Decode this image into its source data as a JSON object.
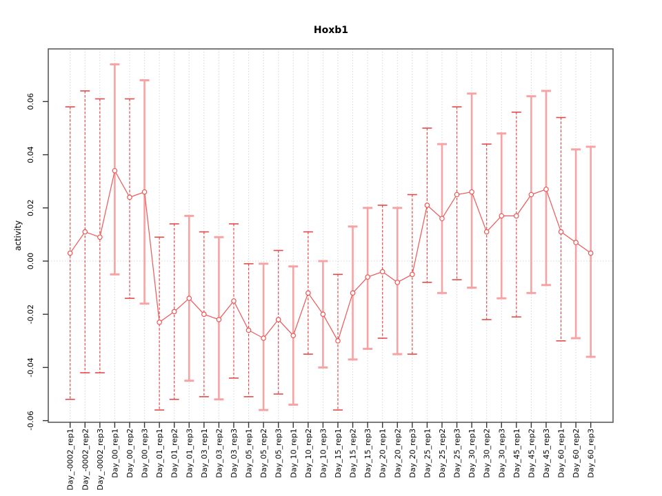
{
  "chart_data": {
    "type": "line",
    "title": "Hoxb1",
    "ylabel": "activity",
    "xlabel": "",
    "grid": "vertical dotted gridline per category plus dotted zero line",
    "legend": "none",
    "ylim": [
      -0.061,
      0.0795
    ],
    "yticks": [
      0.06,
      0.04,
      0.02,
      0.0,
      -0.02,
      -0.04,
      -0.06
    ],
    "ytick_labels": [
      "0.06",
      "0.04",
      "0.02",
      "0.00",
      "-0.02",
      "-0.04",
      "-0.06"
    ],
    "xtick_rotation": 90,
    "categories": [
      "Day_-0002_rep1",
      "Day_-0002_rep2",
      "Day_-0002_rep3",
      "Day_00_rep1",
      "Day_00_rep2",
      "Day_00_rep3",
      "Day_01_rep1",
      "Day_01_rep2",
      "Day_01_rep3",
      "Day_03_rep1",
      "Day_03_rep2",
      "Day_03_rep3",
      "Day_05_rep1",
      "Day_05_rep2",
      "Day_05_rep3",
      "Day_10_rep1",
      "Day_10_rep2",
      "Day_10_rep3",
      "Day_15_rep1",
      "Day_15_rep2",
      "Day_15_rep3",
      "Day_20_rep1",
      "Day_20_rep2",
      "Day_20_rep3",
      "Day_25_rep1",
      "Day_25_rep2",
      "Day_25_rep3",
      "Day_30_rep1",
      "Day_30_rep2",
      "Day_30_rep3",
      "Day_45_rep1",
      "Day_45_rep2",
      "Day_45_rep3",
      "Day_60_rep1",
      "Day_60_rep2",
      "Day_60_rep3"
    ],
    "series": [
      {
        "name": "activity",
        "means": [
          0.003,
          0.011,
          0.009,
          0.034,
          0.024,
          0.026,
          -0.023,
          -0.019,
          -0.014,
          -0.02,
          -0.022,
          -0.015,
          -0.026,
          -0.029,
          -0.022,
          -0.028,
          -0.012,
          -0.02,
          -0.03,
          -0.012,
          -0.006,
          -0.004,
          -0.008,
          -0.005,
          0.021,
          0.016,
          0.025,
          0.026,
          0.011,
          0.017,
          0.017,
          0.025,
          0.027,
          0.011,
          0.007,
          0.003
        ],
        "lower": [
          -0.052,
          -0.042,
          -0.042,
          -0.005,
          -0.014,
          -0.016,
          -0.056,
          -0.052,
          -0.045,
          -0.051,
          -0.052,
          -0.044,
          -0.051,
          -0.056,
          -0.05,
          -0.054,
          -0.035,
          -0.04,
          -0.056,
          -0.037,
          -0.033,
          -0.029,
          -0.035,
          -0.035,
          -0.008,
          -0.012,
          -0.007,
          -0.01,
          -0.022,
          -0.014,
          -0.021,
          -0.012,
          -0.009,
          -0.03,
          -0.029,
          -0.036
        ],
        "upper": [
          0.058,
          0.064,
          0.061,
          0.074,
          0.061,
          0.068,
          0.009,
          0.014,
          0.017,
          0.011,
          0.009,
          0.014,
          -0.001,
          -0.001,
          0.004,
          -0.002,
          0.011,
          0.0,
          -0.005,
          0.013,
          0.02,
          0.021,
          0.02,
          0.025,
          0.05,
          0.044,
          0.058,
          0.063,
          0.044,
          0.048,
          0.056,
          0.062,
          0.064,
          0.054,
          0.042,
          0.043
        ],
        "bar_styles": [
          "dashed",
          "dashed",
          "dashed",
          "solid",
          "dashed",
          "solid",
          "dashed",
          "dashed",
          "solid",
          "dashed",
          "solid",
          "dashed",
          "dashed",
          "solid",
          "dashed",
          "solid",
          "dashed",
          "solid",
          "dashed",
          "solid",
          "solid",
          "dashed",
          "solid",
          "dashed",
          "dashed",
          "solid",
          "dashed",
          "solid",
          "dashed",
          "solid",
          "dashed",
          "solid",
          "solid",
          "dashed",
          "solid",
          "solid"
        ]
      }
    ],
    "colors": {
      "line": "#ee5555",
      "point_stroke": "#ee5555",
      "point_fill": "#ffffff",
      "bar_solid": "#f8a3a3",
      "bar_dashed": "#e64848",
      "grid": "#d4d4d4",
      "axis": "#5a5a5a",
      "tick": "#333333",
      "text": "#000000"
    }
  }
}
